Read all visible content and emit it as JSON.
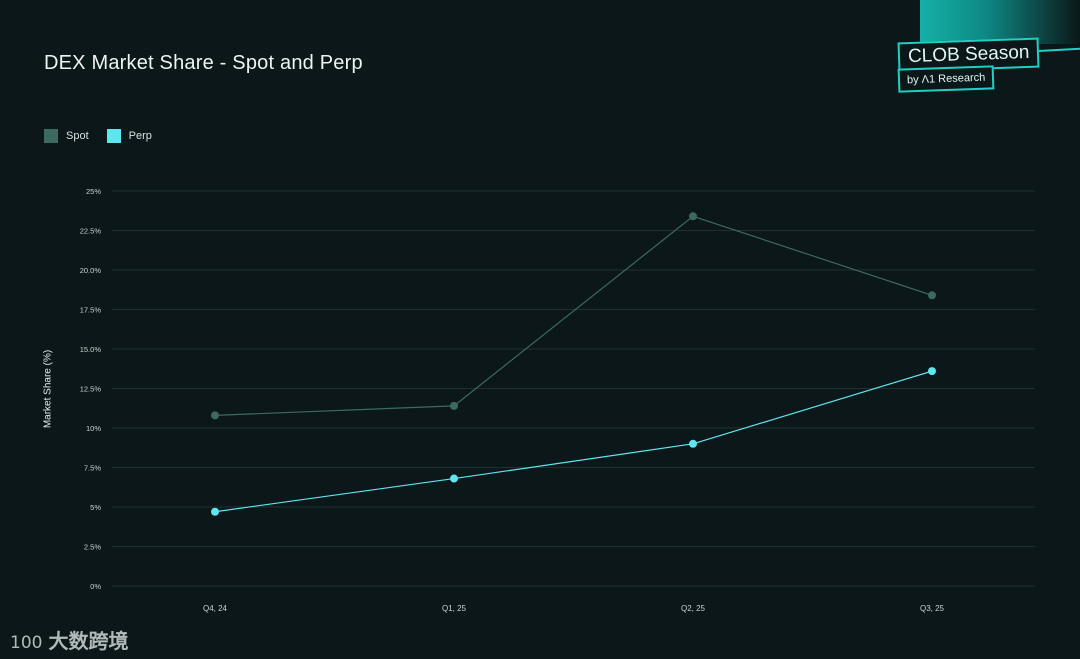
{
  "title": "DEX Market Share - Spot and Perp",
  "brand": {
    "name": "CLOB Season",
    "sub": "by Λ1 Research"
  },
  "watermark": {
    "logo": "100",
    "text": "大数跨境"
  },
  "colors": {
    "background": "#0b1719",
    "spot": "#3c6a62",
    "perp": "#5ee6ee",
    "grid": "#203032",
    "brand_accent": "#21d0c5"
  },
  "chart_data": {
    "type": "line",
    "title": "DEX Market Share - Spot and Perp",
    "xlabel": "",
    "ylabel": "Market Share (%)",
    "categories": [
      "Q4, 24",
      "Q1, 25",
      "Q2, 25",
      "Q3, 25"
    ],
    "series": [
      {
        "name": "Spot",
        "values": [
          10.8,
          11.4,
          23.4,
          18.4
        ]
      },
      {
        "name": "Perp",
        "values": [
          4.7,
          6.8,
          9.0,
          13.6
        ]
      }
    ],
    "ylim": [
      0,
      25
    ],
    "yticks": [
      0,
      2.5,
      5,
      7.5,
      10,
      12.5,
      15,
      17.5,
      20,
      22.5,
      25
    ],
    "ytick_labels": [
      "0%",
      "2.5%",
      "5%",
      "7.5%",
      "10%",
      "12.5%",
      "15.0%",
      "17.5%",
      "20.0%",
      "22.5%",
      "25%"
    ],
    "grid": true,
    "legend": "top-left"
  }
}
